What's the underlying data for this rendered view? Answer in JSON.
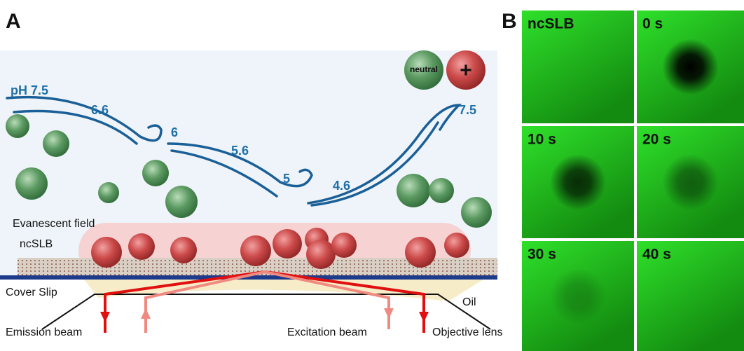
{
  "panel_a": {
    "label": "A",
    "legend": {
      "neutral": "neutral",
      "charged": "+"
    },
    "ph_labels": [
      "pH 7.5",
      "6.6",
      "6",
      "5.6",
      "5",
      "4.6",
      "7.5"
    ],
    "labels": {
      "evanescent_field": "Evanescent field",
      "ncslb": "ncSLB",
      "cover_slip": "Cover Slip",
      "oil": "Oil",
      "emission_beam": "Emission beam",
      "excitation_beam": "Excitation beam",
      "objective_lens": "Objective lens"
    }
  },
  "panel_b": {
    "label": "B",
    "tiles": [
      "ncSLB",
      "0 s",
      "10 s",
      "20 s",
      "30 s",
      "40 s"
    ]
  }
}
